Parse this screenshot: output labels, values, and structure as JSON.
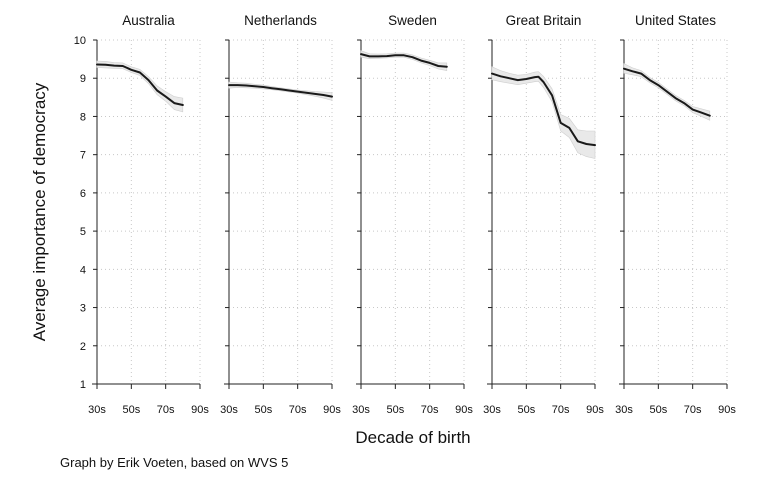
{
  "chart_data": {
    "type": "line",
    "xlabel": "Decade of birth",
    "ylabel": "Average importance of democracy",
    "note": "Graph by Erik Voeten, based on WVS 5",
    "ylim": [
      1,
      10
    ],
    "yticks": [
      1,
      2,
      3,
      4,
      5,
      6,
      7,
      8,
      9,
      10
    ],
    "xlim": [
      1930,
      1990
    ],
    "xticks": [
      {
        "value": 1930,
        "label": "30s"
      },
      {
        "value": 1950,
        "label": "50s"
      },
      {
        "value": 1970,
        "label": "70s"
      },
      {
        "value": 1990,
        "label": "90s"
      }
    ],
    "grid": true,
    "panels": [
      {
        "title": "Australia",
        "x": [
          1930,
          1935,
          1940,
          1945,
          1950,
          1955,
          1960,
          1965,
          1970,
          1975,
          1980
        ],
        "y": [
          9.36,
          9.35,
          9.33,
          9.32,
          9.22,
          9.15,
          8.95,
          8.68,
          8.52,
          8.35,
          8.3
        ],
        "lower": [
          9.28,
          9.27,
          9.26,
          9.25,
          9.15,
          9.07,
          8.86,
          8.57,
          8.4,
          8.18,
          8.12
        ],
        "upper": [
          9.45,
          9.44,
          9.41,
          9.4,
          9.3,
          9.23,
          9.04,
          8.8,
          8.65,
          8.52,
          8.48
        ]
      },
      {
        "title": "Netherlands",
        "x": [
          1930,
          1935,
          1940,
          1945,
          1950,
          1955,
          1960,
          1965,
          1970,
          1975,
          1980,
          1985,
          1990
        ],
        "y": [
          8.82,
          8.82,
          8.81,
          8.79,
          8.77,
          8.74,
          8.71,
          8.68,
          8.65,
          8.62,
          8.59,
          8.56,
          8.52
        ],
        "lower": [
          8.74,
          8.76,
          8.75,
          8.74,
          8.72,
          8.7,
          8.67,
          8.64,
          8.61,
          8.57,
          8.53,
          8.48,
          8.42
        ],
        "upper": [
          8.9,
          8.88,
          8.87,
          8.84,
          8.82,
          8.78,
          8.75,
          8.72,
          8.69,
          8.67,
          8.65,
          8.64,
          8.62
        ]
      },
      {
        "title": "Sweden",
        "x": [
          1930,
          1935,
          1940,
          1945,
          1950,
          1955,
          1960,
          1965,
          1970,
          1975,
          1980
        ],
        "y": [
          9.63,
          9.57,
          9.57,
          9.58,
          9.6,
          9.6,
          9.55,
          9.46,
          9.4,
          9.32,
          9.3
        ],
        "lower": [
          9.55,
          9.51,
          9.52,
          9.53,
          9.55,
          9.55,
          9.49,
          9.4,
          9.33,
          9.24,
          9.2
        ],
        "upper": [
          9.72,
          9.64,
          9.63,
          9.64,
          9.66,
          9.66,
          9.61,
          9.53,
          9.47,
          9.4,
          9.4
        ]
      },
      {
        "title": "Great Britain",
        "x": [
          1930,
          1935,
          1940,
          1945,
          1950,
          1955,
          1957,
          1960,
          1965,
          1970,
          1975,
          1980,
          1985,
          1990
        ],
        "y": [
          9.12,
          9.05,
          9.0,
          8.95,
          8.98,
          9.03,
          9.04,
          8.9,
          8.55,
          7.83,
          7.7,
          7.35,
          7.28,
          7.25
        ],
        "lower": [
          8.96,
          8.91,
          8.87,
          8.83,
          8.87,
          8.91,
          8.92,
          8.76,
          8.38,
          7.62,
          7.45,
          7.05,
          6.95,
          6.9
        ],
        "upper": [
          9.3,
          9.2,
          9.13,
          9.08,
          9.1,
          9.16,
          9.17,
          9.05,
          8.72,
          8.05,
          7.95,
          7.65,
          7.62,
          7.62
        ]
      },
      {
        "title": "United States",
        "x": [
          1930,
          1935,
          1940,
          1945,
          1950,
          1955,
          1960,
          1965,
          1970,
          1975,
          1980
        ],
        "y": [
          9.25,
          9.18,
          9.12,
          8.95,
          8.82,
          8.65,
          8.48,
          8.35,
          8.18,
          8.1,
          8.02
        ],
        "lower": [
          9.13,
          9.09,
          9.04,
          8.88,
          8.75,
          8.58,
          8.41,
          8.28,
          8.1,
          8.0,
          7.9
        ],
        "upper": [
          9.38,
          9.27,
          9.2,
          9.02,
          8.89,
          8.72,
          8.55,
          8.42,
          8.26,
          8.2,
          8.14
        ]
      }
    ]
  },
  "colors": {
    "line": "#1a1a1a",
    "band": "#e9e9e9",
    "band_edge": "#cfcfcf",
    "grid": "#c8c8c8",
    "axis": "#222222",
    "text": "#111111"
  }
}
